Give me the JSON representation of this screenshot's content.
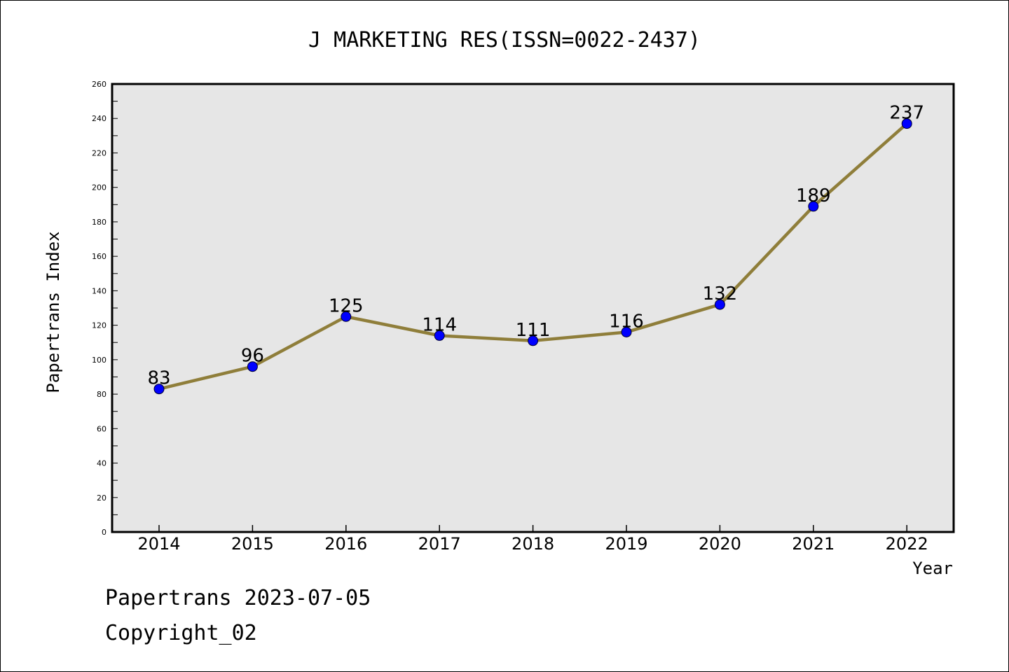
{
  "chart_data": {
    "type": "line",
    "title": "J MARKETING RES(ISSN=0022-2437)",
    "xlabel": "Year",
    "ylabel": "Papertrans Index",
    "categories": [
      "2014",
      "2015",
      "2016",
      "2017",
      "2018",
      "2019",
      "2020",
      "2021",
      "2022"
    ],
    "series": [
      {
        "values": [
          83,
          96,
          125,
          114,
          111,
          116,
          132,
          189,
          237
        ]
      }
    ],
    "data_labels": [
      "83",
      "96",
      "125",
      "114",
      "111",
      "116",
      "132",
      "189",
      "237"
    ],
    "ylim": [
      0,
      260
    ],
    "yticks": [
      "0",
      "20",
      "40",
      "60",
      "80",
      "100",
      "120",
      "140",
      "160",
      "180",
      "200",
      "220",
      "240",
      "260"
    ],
    "grid": false,
    "line_color": "#8f7e3a",
    "marker_color": "#0000ff",
    "plot_background": "#e6e6e6"
  },
  "footer": {
    "line1": "Papertrans 2023-07-05",
    "line2": "Copyright_02"
  }
}
